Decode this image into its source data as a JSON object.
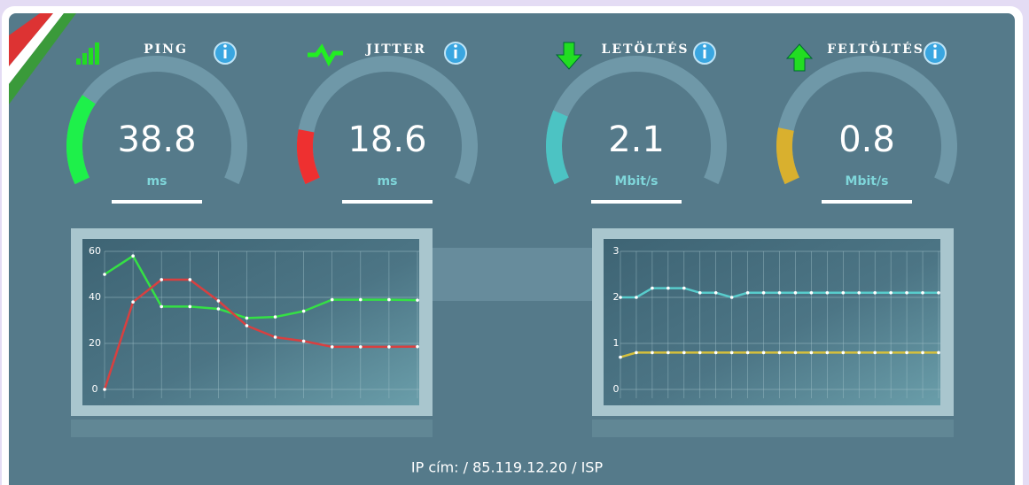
{
  "gauges": [
    {
      "label": "PING",
      "value": 38.8,
      "unit": "ms",
      "color": "#1ef04a",
      "range": [
        0,
        150
      ]
    },
    {
      "label": "JITTER",
      "value": 18.6,
      "unit": "ms",
      "color": "#ee3030",
      "range": [
        0,
        120
      ]
    },
    {
      "label": "LETÖLTÉS",
      "value": 2.1,
      "unit": "Mbit/s",
      "color": "#4cc3c3",
      "range": [
        0,
        10
      ]
    },
    {
      "label": "FELTÖLTÉS",
      "value": 0.8,
      "unit": "Mbit/s",
      "color": "#d9b02e",
      "range": [
        0,
        5
      ]
    }
  ],
  "charts": [
    {
      "type": "line",
      "ylim": [
        0,
        60
      ],
      "yticks": [
        0,
        20,
        40,
        60
      ],
      "series": [
        {
          "color": "#35e045",
          "values": [
            50,
            58,
            36,
            36,
            35,
            31,
            31.5,
            34,
            39,
            39,
            39,
            38.8
          ]
        },
        {
          "color": "#d84040",
          "values": [
            0,
            38,
            47.7,
            47.7,
            38.5,
            27.7,
            22.7,
            21,
            18.5,
            18.5,
            18.5,
            18.6
          ]
        }
      ]
    },
    {
      "type": "line",
      "ylim": [
        0,
        3
      ],
      "yticks": [
        0,
        1,
        2,
        3
      ],
      "series": [
        {
          "color": "#58cccc",
          "values": [
            2.0,
            2.0,
            2.2,
            2.2,
            2.2,
            2.1,
            2.1,
            2.0,
            2.1,
            2.1,
            2.1,
            2.1,
            2.1,
            2.1,
            2.1,
            2.1,
            2.1,
            2.1,
            2.1,
            2.1,
            2.1
          ]
        },
        {
          "color": "#d6c03c",
          "values": [
            0.7,
            0.8,
            0.8,
            0.8,
            0.8,
            0.8,
            0.8,
            0.8,
            0.8,
            0.8,
            0.8,
            0.8,
            0.8,
            0.8,
            0.8,
            0.8,
            0.8,
            0.8,
            0.8,
            0.8,
            0.8
          ]
        }
      ]
    }
  ],
  "footer": "IP cím: / 85.119.12.20 / ISP"
}
